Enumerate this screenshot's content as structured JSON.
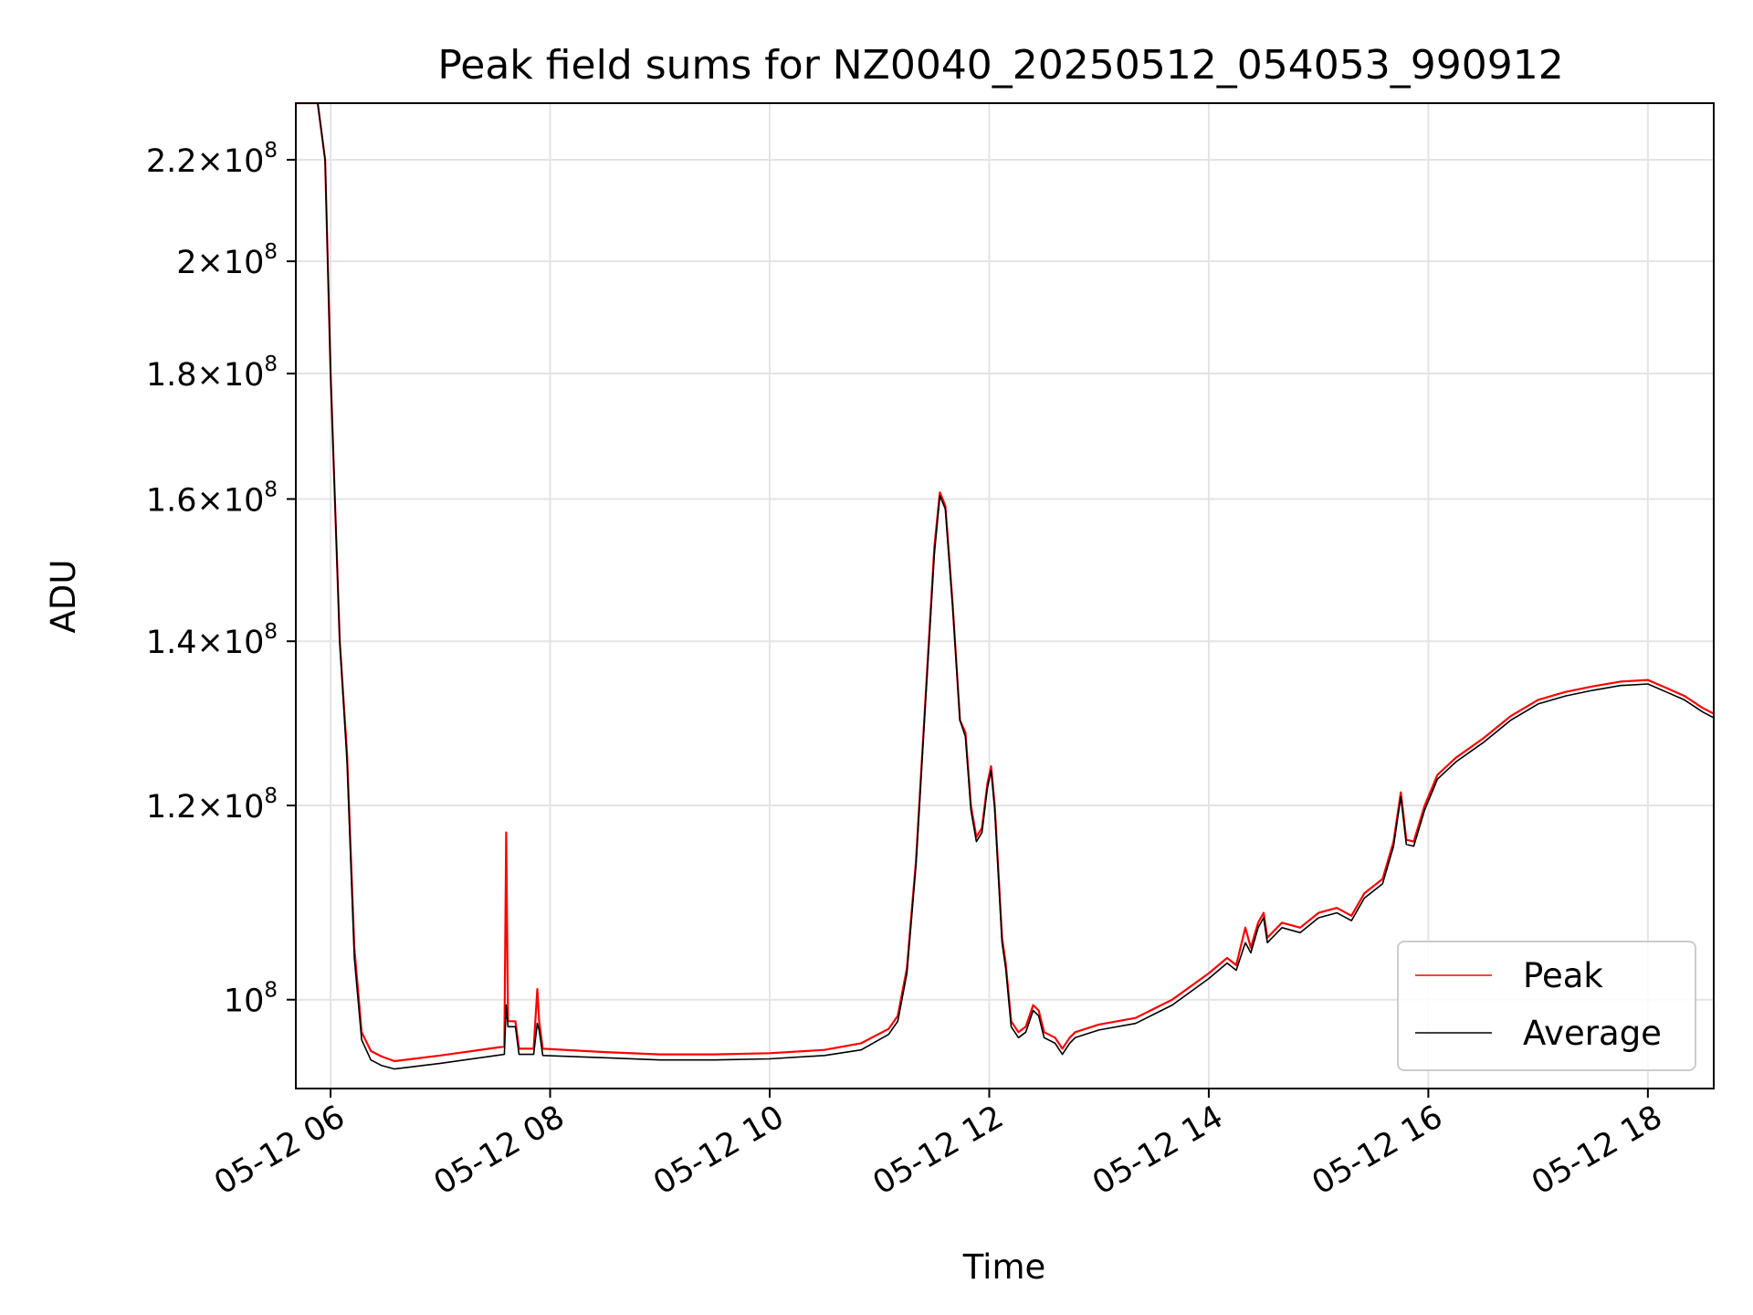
{
  "chart_data": {
    "type": "line",
    "title": "Peak field sums for NZ0040_20250512_054053_990912",
    "xlabel": "Time",
    "ylabel": "ADU",
    "yscale": "log",
    "grid": true,
    "legend_position": "lower-right",
    "xlim": [
      "2025-05-12 05:41",
      "2025-05-12 18:36"
    ],
    "ylim": [
      92000000,
      232000000
    ],
    "x_ticks": [
      {
        "value": "2025-05-12 06:00",
        "label": "05-12 06"
      },
      {
        "value": "2025-05-12 08:00",
        "label": "05-12 08"
      },
      {
        "value": "2025-05-12 10:00",
        "label": "05-12 10"
      },
      {
        "value": "2025-05-12 12:00",
        "label": "05-12 12"
      },
      {
        "value": "2025-05-12 14:00",
        "label": "05-12 14"
      },
      {
        "value": "2025-05-12 16:00",
        "label": "05-12 16"
      },
      {
        "value": "2025-05-12 18:00",
        "label": "05-12 18"
      }
    ],
    "y_ticks": [
      {
        "value": 100000000,
        "mantissa": "",
        "exponent": "8"
      },
      {
        "value": 120000000,
        "mantissa": "1.2",
        "exponent": "8"
      },
      {
        "value": 140000000,
        "mantissa": "1.4",
        "exponent": "8"
      },
      {
        "value": 160000000,
        "mantissa": "1.6",
        "exponent": "8"
      },
      {
        "value": 180000000,
        "mantissa": "1.8",
        "exponent": "8"
      },
      {
        "value": 200000000,
        "mantissa": "2",
        "exponent": "8"
      },
      {
        "value": 220000000,
        "mantissa": "2.2",
        "exponent": "8"
      }
    ],
    "series": [
      {
        "name": "Peak",
        "color": "#ff0000",
        "points": [
          [
            "2025-05-12 05:41",
            232000000
          ],
          [
            "2025-05-12 05:53",
            232000000
          ],
          [
            "2025-05-12 05:57",
            220000000
          ],
          [
            "2025-05-12 06:00",
            180000000
          ],
          [
            "2025-05-12 06:05",
            140000000
          ],
          [
            "2025-05-12 06:09",
            126000000
          ],
          [
            "2025-05-12 06:13",
            105000000
          ],
          [
            "2025-05-12 06:17",
            97000000
          ],
          [
            "2025-05-12 06:22",
            95300000
          ],
          [
            "2025-05-12 06:28",
            94800000
          ],
          [
            "2025-05-12 06:35",
            94400000
          ],
          [
            "2025-05-12 07:00",
            94900000
          ],
          [
            "2025-05-12 07:35",
            95700000
          ],
          [
            "2025-05-12 07:36",
            117000000
          ],
          [
            "2025-05-12 07:37",
            98000000
          ],
          [
            "2025-05-12 07:41",
            98000000
          ],
          [
            "2025-05-12 07:43",
            95500000
          ],
          [
            "2025-05-12 07:51",
            95500000
          ],
          [
            "2025-05-12 07:53",
            101000000
          ],
          [
            "2025-05-12 07:54",
            98000000
          ],
          [
            "2025-05-12 07:56",
            95500000
          ],
          [
            "2025-05-12 08:30",
            95200000
          ],
          [
            "2025-05-12 09:00",
            95000000
          ],
          [
            "2025-05-12 09:30",
            95000000
          ],
          [
            "2025-05-12 10:00",
            95100000
          ],
          [
            "2025-05-12 10:30",
            95400000
          ],
          [
            "2025-05-12 10:50",
            96000000
          ],
          [
            "2025-05-12 11:05",
            97300000
          ],
          [
            "2025-05-12 11:10",
            98500000
          ],
          [
            "2025-05-12 11:15",
            103000000
          ],
          [
            "2025-05-12 11:20",
            114000000
          ],
          [
            "2025-05-12 11:25",
            132000000
          ],
          [
            "2025-05-12 11:30",
            153000000
          ],
          [
            "2025-05-12 11:33",
            161000000
          ],
          [
            "2025-05-12 11:36",
            159000000
          ],
          [
            "2025-05-12 11:40",
            145000000
          ],
          [
            "2025-05-12 11:44",
            130000000
          ],
          [
            "2025-05-12 11:47",
            128500000
          ],
          [
            "2025-05-12 11:50",
            120000000
          ],
          [
            "2025-05-12 11:53",
            116500000
          ],
          [
            "2025-05-12 11:56",
            117500000
          ],
          [
            "2025-05-12 11:59",
            122500000
          ],
          [
            "2025-05-12 12:01",
            124500000
          ],
          [
            "2025-05-12 12:03",
            120000000
          ],
          [
            "2025-05-12 12:07",
            106000000
          ],
          [
            "2025-05-12 12:09",
            103500000
          ],
          [
            "2025-05-12 12:12",
            98000000
          ],
          [
            "2025-05-12 12:16",
            97000000
          ],
          [
            "2025-05-12 12:20",
            97500000
          ],
          [
            "2025-05-12 12:24",
            99500000
          ],
          [
            "2025-05-12 12:27",
            99000000
          ],
          [
            "2025-05-12 12:30",
            97000000
          ],
          [
            "2025-05-12 12:36",
            96500000
          ],
          [
            "2025-05-12 12:40",
            95500000
          ],
          [
            "2025-05-12 12:44",
            96500000
          ],
          [
            "2025-05-12 12:47",
            97000000
          ],
          [
            "2025-05-12 13:00",
            97700000
          ],
          [
            "2025-05-12 13:20",
            98300000
          ],
          [
            "2025-05-12 13:40",
            100000000
          ],
          [
            "2025-05-12 14:00",
            102500000
          ],
          [
            "2025-05-12 14:10",
            104000000
          ],
          [
            "2025-05-12 14:15",
            103300000
          ],
          [
            "2025-05-12 14:20",
            107000000
          ],
          [
            "2025-05-12 14:23",
            105000000
          ],
          [
            "2025-05-12 14:27",
            107500000
          ],
          [
            "2025-05-12 14:30",
            108500000
          ],
          [
            "2025-05-12 14:32",
            106000000
          ],
          [
            "2025-05-12 14:40",
            107500000
          ],
          [
            "2025-05-12 14:50",
            107000000
          ],
          [
            "2025-05-12 15:00",
            108500000
          ],
          [
            "2025-05-12 15:10",
            109000000
          ],
          [
            "2025-05-12 15:18",
            108200000
          ],
          [
            "2025-05-12 15:25",
            110500000
          ],
          [
            "2025-05-12 15:35",
            112000000
          ],
          [
            "2025-05-12 15:41",
            116000000
          ],
          [
            "2025-05-12 15:45",
            121500000
          ],
          [
            "2025-05-12 15:48",
            116200000
          ],
          [
            "2025-05-12 15:52",
            116000000
          ],
          [
            "2025-05-12 15:58",
            120000000
          ],
          [
            "2025-05-12 16:05",
            123500000
          ],
          [
            "2025-05-12 16:15",
            125500000
          ],
          [
            "2025-05-12 16:30",
            127800000
          ],
          [
            "2025-05-12 16:45",
            130500000
          ],
          [
            "2025-05-12 17:00",
            132500000
          ],
          [
            "2025-05-12 17:15",
            133500000
          ],
          [
            "2025-05-12 17:30",
            134200000
          ],
          [
            "2025-05-12 17:45",
            134800000
          ],
          [
            "2025-05-12 18:00",
            135000000
          ],
          [
            "2025-05-12 18:10",
            134000000
          ],
          [
            "2025-05-12 18:20",
            133000000
          ],
          [
            "2025-05-12 18:30",
            131500000
          ],
          [
            "2025-05-12 18:36",
            130800000
          ]
        ]
      },
      {
        "name": "Average",
        "color": "#000000",
        "points": [
          [
            "2025-05-12 05:41",
            232000000
          ],
          [
            "2025-05-12 05:53",
            232000000
          ],
          [
            "2025-05-12 05:57",
            220000000
          ],
          [
            "2025-05-12 06:00",
            180000000
          ],
          [
            "2025-05-12 06:05",
            140000000
          ],
          [
            "2025-05-12 06:09",
            125000000
          ],
          [
            "2025-05-12 06:13",
            104000000
          ],
          [
            "2025-05-12 06:17",
            96300000
          ],
          [
            "2025-05-12 06:22",
            94500000
          ],
          [
            "2025-05-12 06:28",
            94000000
          ],
          [
            "2025-05-12 06:35",
            93700000
          ],
          [
            "2025-05-12 07:00",
            94200000
          ],
          [
            "2025-05-12 07:35",
            95000000
          ],
          [
            "2025-05-12 07:36",
            99500000
          ],
          [
            "2025-05-12 07:37",
            97500000
          ],
          [
            "2025-05-12 07:41",
            97500000
          ],
          [
            "2025-05-12 07:43",
            95000000
          ],
          [
            "2025-05-12 07:51",
            95000000
          ],
          [
            "2025-05-12 07:53",
            97800000
          ],
          [
            "2025-05-12 07:54",
            97200000
          ],
          [
            "2025-05-12 07:56",
            94900000
          ],
          [
            "2025-05-12 08:30",
            94700000
          ],
          [
            "2025-05-12 09:00",
            94500000
          ],
          [
            "2025-05-12 09:30",
            94500000
          ],
          [
            "2025-05-12 10:00",
            94600000
          ],
          [
            "2025-05-12 10:30",
            94900000
          ],
          [
            "2025-05-12 10:50",
            95400000
          ],
          [
            "2025-05-12 11:05",
            96800000
          ],
          [
            "2025-05-12 11:10",
            98000000
          ],
          [
            "2025-05-12 11:15",
            102500000
          ],
          [
            "2025-05-12 11:20",
            113500000
          ],
          [
            "2025-05-12 11:25",
            131500000
          ],
          [
            "2025-05-12 11:30",
            152000000
          ],
          [
            "2025-05-12 11:33",
            160500000
          ],
          [
            "2025-05-12 11:36",
            158500000
          ],
          [
            "2025-05-12 11:40",
            144500000
          ],
          [
            "2025-05-12 11:44",
            130000000
          ],
          [
            "2025-05-12 11:47",
            128000000
          ],
          [
            "2025-05-12 11:50",
            119500000
          ],
          [
            "2025-05-12 11:53",
            116000000
          ],
          [
            "2025-05-12 11:56",
            117000000
          ],
          [
            "2025-05-12 11:59",
            122000000
          ],
          [
            "2025-05-12 12:01",
            124000000
          ],
          [
            "2025-05-12 12:03",
            119500000
          ],
          [
            "2025-05-12 12:07",
            105500000
          ],
          [
            "2025-05-12 12:09",
            103000000
          ],
          [
            "2025-05-12 12:12",
            97500000
          ],
          [
            "2025-05-12 12:16",
            96500000
          ],
          [
            "2025-05-12 12:20",
            97000000
          ],
          [
            "2025-05-12 12:24",
            99000000
          ],
          [
            "2025-05-12 12:27",
            98500000
          ],
          [
            "2025-05-12 12:30",
            96500000
          ],
          [
            "2025-05-12 12:36",
            96000000
          ],
          [
            "2025-05-12 12:40",
            95000000
          ],
          [
            "2025-05-12 12:44",
            96000000
          ],
          [
            "2025-05-12 12:47",
            96500000
          ],
          [
            "2025-05-12 13:00",
            97200000
          ],
          [
            "2025-05-12 13:20",
            97800000
          ],
          [
            "2025-05-12 13:40",
            99500000
          ],
          [
            "2025-05-12 14:00",
            102000000
          ],
          [
            "2025-05-12 14:10",
            103500000
          ],
          [
            "2025-05-12 14:15",
            102800000
          ],
          [
            "2025-05-12 14:20",
            105500000
          ],
          [
            "2025-05-12 14:23",
            104500000
          ],
          [
            "2025-05-12 14:27",
            107000000
          ],
          [
            "2025-05-12 14:30",
            108000000
          ],
          [
            "2025-05-12 14:32",
            105500000
          ],
          [
            "2025-05-12 14:40",
            107000000
          ],
          [
            "2025-05-12 14:50",
            106500000
          ],
          [
            "2025-05-12 15:00",
            108000000
          ],
          [
            "2025-05-12 15:10",
            108500000
          ],
          [
            "2025-05-12 15:18",
            107700000
          ],
          [
            "2025-05-12 15:25",
            110000000
          ],
          [
            "2025-05-12 15:35",
            111500000
          ],
          [
            "2025-05-12 15:41",
            115500000
          ],
          [
            "2025-05-12 15:45",
            121000000
          ],
          [
            "2025-05-12 15:48",
            115700000
          ],
          [
            "2025-05-12 15:52",
            115500000
          ],
          [
            "2025-05-12 15:58",
            119500000
          ],
          [
            "2025-05-12 16:05",
            123000000
          ],
          [
            "2025-05-12 16:15",
            125000000
          ],
          [
            "2025-05-12 16:30",
            127300000
          ],
          [
            "2025-05-12 16:45",
            130000000
          ],
          [
            "2025-05-12 17:00",
            132000000
          ],
          [
            "2025-05-12 17:15",
            133000000
          ],
          [
            "2025-05-12 17:30",
            133700000
          ],
          [
            "2025-05-12 17:45",
            134300000
          ],
          [
            "2025-05-12 18:00",
            134500000
          ],
          [
            "2025-05-12 18:10",
            133500000
          ],
          [
            "2025-05-12 18:20",
            132500000
          ],
          [
            "2025-05-12 18:30",
            131000000
          ],
          [
            "2025-05-12 18:36",
            130300000
          ]
        ]
      }
    ]
  }
}
